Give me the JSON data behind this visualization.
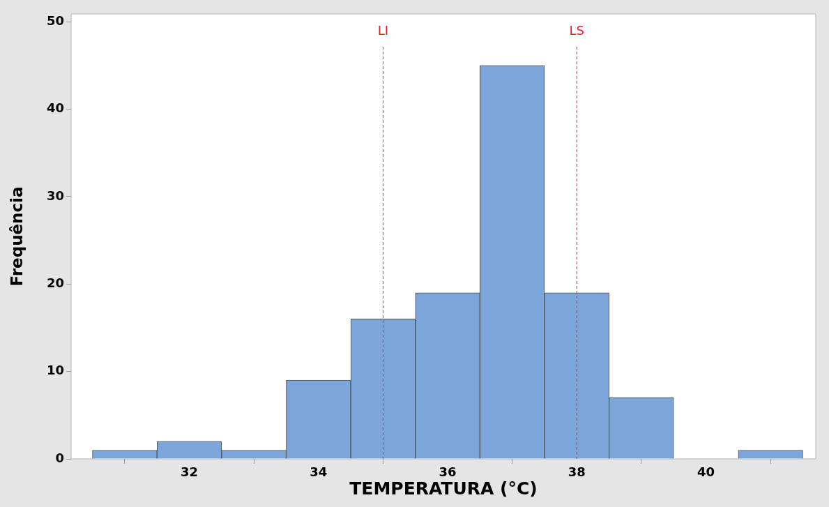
{
  "chart_data": {
    "type": "histogram",
    "xlabel": "TEMPERATURA (°C)",
    "ylabel": "Frequência",
    "bins": [
      30.5,
      31.5,
      32.5,
      33.5,
      34.5,
      35.5,
      36.5,
      37.5,
      38.5,
      39.5,
      40.5,
      41.5
    ],
    "values": [
      1,
      2,
      1,
      9,
      16,
      19,
      45,
      19,
      7,
      0,
      1
    ],
    "color": "#7ca6d9",
    "xlim": [
      30.17,
      41.7
    ],
    "xticks": [
      32,
      34,
      36,
      38,
      40
    ],
    "ylim": [
      0,
      50.9
    ],
    "yticks": [
      0,
      10,
      20,
      30,
      40,
      50
    ],
    "ref_lines": [
      {
        "axis": "x",
        "value": 35,
        "label": "LI",
        "color": "#e8202a",
        "line_style": "dashed"
      },
      {
        "axis": "x",
        "value": 38,
        "label": "LS",
        "color": "#e8202a",
        "line_style": "dashed"
      }
    ],
    "grid": false,
    "legend": false
  }
}
